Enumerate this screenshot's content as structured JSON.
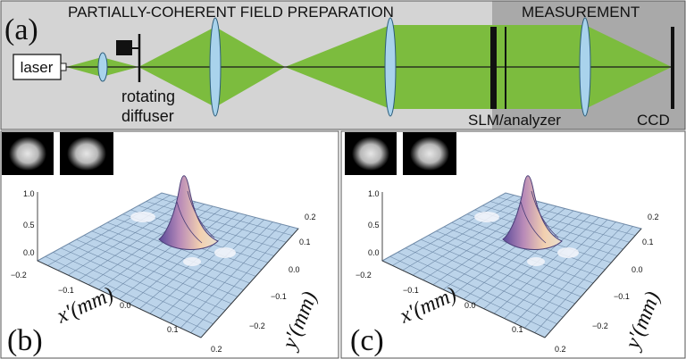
{
  "panel_a": {
    "label": "(a)",
    "section_titles": {
      "preparation": "PARTIALLY-COHERENT FIELD PREPARATION",
      "measurement": "MEASUREMENT"
    },
    "labels": {
      "laser": "laser",
      "diffuser_line1": "rotating",
      "diffuser_line2": "diffuser",
      "slm": "SLM/analyzer",
      "ccd": "CCD"
    },
    "colors": {
      "preparation_bg": "#d4d4d4",
      "measurement_bg": "#a9a9a9",
      "beam": "#7cbc3e",
      "lens": "#a9d3ec",
      "dark": "#111111"
    }
  },
  "panel_b": {
    "label": "(b)",
    "axis_x_label": "x'(mm)",
    "axis_y_label": "y'(mm)",
    "z_ticks": [
      "1.0",
      "0.5",
      "0.0"
    ],
    "x_ticks": [
      "−0.2",
      "−0.1",
      "0.0",
      "0.1",
      "0.2"
    ],
    "y_ticks": [
      "0.2",
      "0.1",
      "0.0",
      "−0.1",
      "−0.2"
    ]
  },
  "panel_c": {
    "label": "(c)",
    "axis_x_label": "x'(mm)",
    "axis_y_label": "y'(mm)",
    "z_ticks": [
      "1.0",
      "0.5",
      "0.0"
    ],
    "x_ticks": [
      "−0.2",
      "−0.1",
      "0.0",
      "0.1",
      "0.2"
    ],
    "y_ticks": [
      "0.2",
      "0.1",
      "0.0",
      "−0.1",
      "−0.2"
    ]
  }
}
